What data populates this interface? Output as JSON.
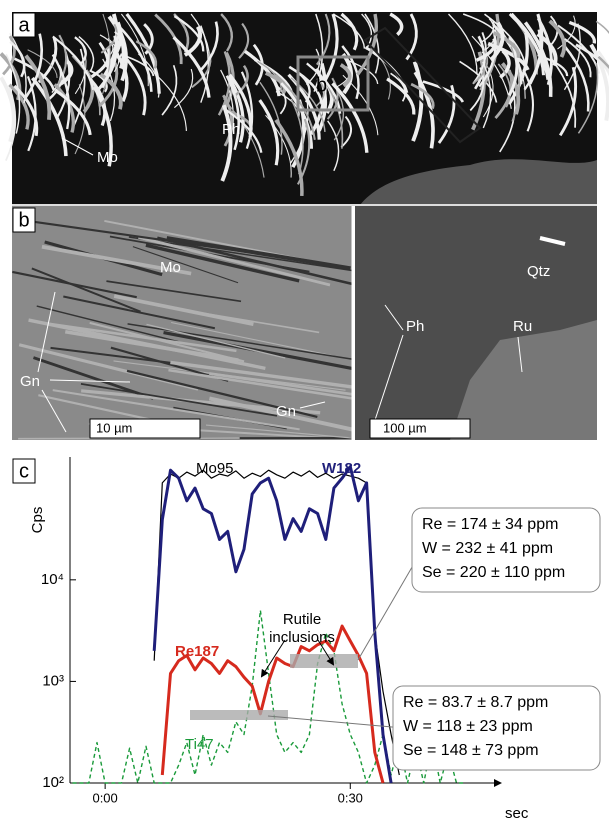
{
  "panels": {
    "a": {
      "label": "a",
      "mo": "Mo",
      "ph": "Ph",
      "inset": "b"
    },
    "b": {
      "label": "b",
      "mo": "Mo",
      "gn1": "Gn",
      "gn2": "Gn",
      "scale": "10 µm"
    },
    "qtz": {
      "qtz": "Qtz",
      "ph": "Ph",
      "ru": "Ru",
      "scale": "100 µm"
    },
    "c": {
      "label": "c"
    }
  },
  "chart_data": {
    "type": "line",
    "ylabel": "Cps",
    "xlabel": "sec",
    "log_scale": true,
    "xlim": [
      -4.3,
      47.1
    ],
    "xticks": [
      {
        "value": 0,
        "label": "0:00"
      },
      {
        "value": 30,
        "label": "0:30"
      }
    ],
    "ylim": [
      100,
      135000
    ],
    "yticks": [
      {
        "value": 100,
        "label": "10²"
      },
      {
        "value": 1000,
        "label": "10³"
      },
      {
        "value": 10000,
        "label": "10⁴"
      }
    ],
    "x": [
      -4,
      -3,
      -2,
      -1,
      0,
      1,
      2,
      3,
      4,
      5,
      6,
      7,
      8,
      9,
      10,
      11,
      12,
      13,
      14,
      15,
      16,
      17,
      18,
      19,
      20,
      21,
      22,
      23,
      24,
      25,
      26,
      27,
      28,
      29,
      30,
      31,
      32,
      33,
      34,
      35,
      36,
      37,
      38,
      39,
      40,
      41,
      42,
      43,
      44
    ],
    "series": [
      {
        "name": "Ti47",
        "color": "#1a9a3a",
        "dashed": true,
        "values": [
          100,
          100,
          100,
          250,
          100,
          100,
          100,
          220,
          100,
          230,
          100,
          100,
          100,
          150,
          250,
          120,
          300,
          150,
          250,
          200,
          400,
          300,
          900,
          5000,
          1200,
          300,
          200,
          250,
          200,
          300,
          1500,
          3000,
          2000,
          600,
          300,
          200,
          100,
          150,
          300,
          120,
          250,
          100,
          220,
          100,
          260,
          100,
          200,
          100,
          100
        ]
      },
      {
        "name": "Mo95",
        "color": "#000000",
        "dashed": false,
        "values": [
          null,
          null,
          null,
          null,
          null,
          null,
          null,
          null,
          null,
          null,
          1600,
          90000,
          110000,
          100000,
          115000,
          105000,
          120000,
          100000,
          110000,
          105000,
          118000,
          100000,
          112000,
          104000,
          120000,
          108000,
          100000,
          115000,
          105000,
          118000,
          102000,
          112000,
          100000,
          110000,
          105000,
          100000,
          90000,
          3000,
          800,
          300,
          120,
          null,
          null,
          null,
          null,
          null,
          null,
          null,
          null
        ]
      },
      {
        "name": "W182",
        "color": "#1f1f7a",
        "dashed": false,
        "values": [
          null,
          null,
          null,
          null,
          null,
          null,
          null,
          null,
          null,
          null,
          2000,
          39000,
          120000,
          100000,
          60000,
          80000,
          50000,
          45000,
          25000,
          30000,
          12000,
          20000,
          70000,
          90000,
          100000,
          60000,
          25000,
          40000,
          30000,
          50000,
          45000,
          25000,
          80000,
          100000,
          130000,
          60000,
          90000,
          3000,
          300,
          100,
          null,
          null,
          null,
          null,
          null,
          null,
          null,
          null,
          null
        ]
      },
      {
        "name": "Re187",
        "color": "#d62a1e",
        "dashed": false,
        "values": [
          null,
          null,
          null,
          null,
          null,
          null,
          null,
          null,
          null,
          null,
          null,
          120,
          1200,
          1600,
          1800,
          1300,
          1700,
          1500,
          1200,
          1600,
          1400,
          1100,
          900,
          480,
          1000,
          1700,
          1500,
          1400,
          2200,
          2000,
          2300,
          2500,
          2000,
          3500,
          2500,
          1800,
          1200,
          200,
          100,
          null,
          null,
          null,
          null,
          null,
          null,
          null,
          null,
          null,
          null
        ]
      }
    ],
    "annotation": [
      "Rutile",
      "inclusions"
    ],
    "callouts": [
      [
        "Re = 174 ± 34 ppm",
        "W = 232 ± 41 ppm",
        "Se = 220 ± 110 ppm"
      ],
      [
        "Re = 83.7 ± 8.7 ppm",
        "W = 118 ± 23 ppm",
        "Se = 148 ± 73 ppm"
      ]
    ]
  }
}
